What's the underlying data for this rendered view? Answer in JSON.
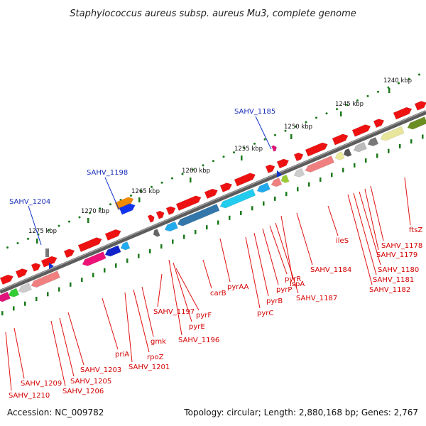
{
  "title": "Staphylococcus aureus subsp. aureus Mu3, complete genome",
  "footer": {
    "accession": "Accession: NC_009782",
    "stats": "Topology: circular; Length: 2,880,168 bp; Genes: 2,767"
  },
  "scale_ticks": [
    "1240 kbp",
    "1245 kbp",
    "1250 kbp",
    "1255 kbp",
    "1260 kbp",
    "1265 kbp",
    "1270 kbp",
    "1275 kbp"
  ],
  "colors": {
    "forward_gene": "#ee1111",
    "callout_red": "#e01010",
    "callout_blue": "#1133cc",
    "backbone": "#6d6d6d",
    "tick_green": "#1b7a1b"
  },
  "labels_reverse": [
    "ftsZ",
    "SAHV_1178",
    "SAHV_1179",
    "SAHV_1180",
    "SAHV_1181",
    "SAHV_1182",
    "ileS",
    "SAHV_1184",
    "lspA",
    "SAHV_1187",
    "pyrR",
    "pyrP",
    "pyrB",
    "pyrC",
    "pyrAA",
    "carB",
    "SAHV_1196",
    "pyrE",
    "pyrF",
    "SAHV_1197",
    "gmk",
    "rpoZ",
    "SAHV_1201",
    "priA",
    "SAHV_1203",
    "SAHV_1205",
    "SAHV_1206",
    "SAHV_1209",
    "SAHV_1210"
  ],
  "labels_forward": [
    "SAHV_1185",
    "SAHV_1198",
    "SAHV_1204"
  ]
}
